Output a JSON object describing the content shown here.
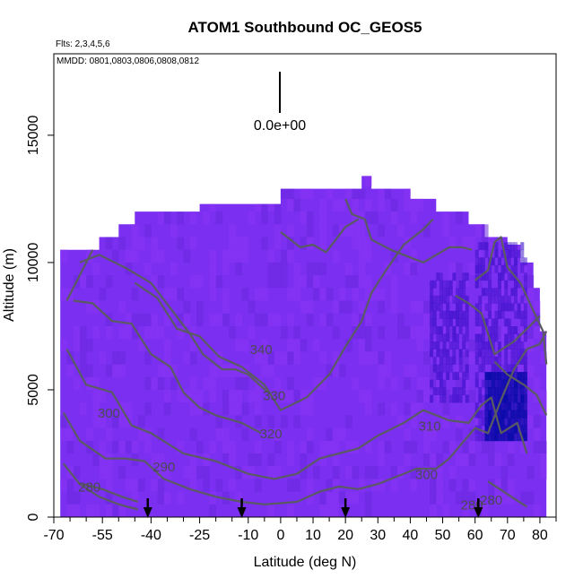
{
  "chart_data": {
    "type": "heatmap",
    "title": "ATOM1 Southbound OC_GEOS5",
    "subtitle": "Flts: 2,3,4,5,6",
    "note": "MMDD: 0801,0803,0806,0808,0812",
    "legend_value_label": "0.0e+00",
    "xlabel": "Latitude (deg N)",
    "ylabel": "Altitude (m)",
    "xlim": [
      -70,
      85
    ],
    "ylim": [
      0,
      18200
    ],
    "x_ticks": [
      -70,
      -55,
      -40,
      -25,
      -10,
      0,
      10,
      20,
      30,
      40,
      50,
      60,
      70,
      80
    ],
    "x_tick_labels": [
      "-70",
      "-55",
      "-40",
      "-25",
      "-10",
      "0",
      "10",
      "20",
      "30",
      "40",
      "50",
      "60",
      "70",
      "80"
    ],
    "y_ticks": [
      0,
      5000,
      10000,
      15000
    ],
    "y_tick_labels": [
      "0",
      "5000",
      "10000",
      "15000"
    ],
    "grid": false,
    "colors": {
      "field_base": "#7b2ff0",
      "field_light": "#8a35f5",
      "field_dark": "#6a28e0",
      "field_high": "#3b10c8",
      "field_max": "#0a0aa8",
      "contour": "#5a5a62",
      "contour_label": "#4a4a52",
      "axis": "#000000"
    },
    "field_envelope": [
      {
        "x": -68,
        "top": 10500
      },
      {
        "x": -62,
        "top": 10500
      },
      {
        "x": -56,
        "top": 11000
      },
      {
        "x": -50,
        "top": 11500
      },
      {
        "x": -45,
        "top": 12000
      },
      {
        "x": -35,
        "top": 12000
      },
      {
        "x": -25,
        "top": 12300
      },
      {
        "x": -12,
        "top": 12300
      },
      {
        "x": 0,
        "top": 12900
      },
      {
        "x": 20,
        "top": 12900
      },
      {
        "x": 25,
        "top": 13400
      },
      {
        "x": 28,
        "top": 12900
      },
      {
        "x": 40,
        "top": 12500
      },
      {
        "x": 48,
        "top": 12000
      },
      {
        "x": 58,
        "top": 11500
      },
      {
        "x": 63,
        "top": 11000
      },
      {
        "x": 70,
        "top": 10700
      },
      {
        "x": 74,
        "top": 10000
      },
      {
        "x": 78,
        "top": 9000
      },
      {
        "x": 80,
        "top": 7300
      },
      {
        "x": 82,
        "top": 6000
      }
    ],
    "high_regions": [
      {
        "x0": 46,
        "x1": 58,
        "y0": 4500,
        "y1": 9500,
        "level": "high"
      },
      {
        "x0": 60,
        "x1": 76,
        "y0": 3000,
        "y1": 10700,
        "level": "high"
      },
      {
        "x0": 63,
        "x1": 76,
        "y0": 3000,
        "y1": 5700,
        "level": "max"
      }
    ],
    "contours": [
      {
        "label": "340",
        "points": [
          [
            -45,
            9200
          ],
          [
            -38,
            8600
          ],
          [
            -32,
            7400
          ],
          [
            -25,
            7100
          ],
          [
            -19,
            6300
          ],
          [
            -12,
            5900
          ],
          [
            -5,
            5200
          ],
          [
            0,
            4200
          ],
          [
            8,
            4700
          ],
          [
            15,
            5600
          ],
          [
            20,
            6700
          ],
          [
            25,
            7700
          ],
          [
            28,
            8800
          ],
          [
            32,
            9600
          ],
          [
            38,
            10700
          ],
          [
            44,
            11300
          ],
          [
            47,
            11700
          ]
        ]
      },
      {
        "label": "330",
        "points": [
          [
            -62,
            10000
          ],
          [
            -56,
            10300
          ],
          [
            -48,
            9800
          ],
          [
            -40,
            9200
          ],
          [
            -34,
            8200
          ],
          [
            -28,
            7200
          ],
          [
            -24,
            6400
          ],
          [
            -18,
            5800
          ],
          [
            -14,
            5800
          ],
          [
            -10,
            5600
          ],
          [
            -4,
            4900
          ]
        ]
      },
      {
        "label": "320",
        "points": [
          [
            -64,
            8500
          ],
          [
            -58,
            8400
          ],
          [
            -52,
            7700
          ],
          [
            -46,
            7600
          ],
          [
            -40,
            6400
          ],
          [
            -34,
            5900
          ],
          [
            -30,
            4900
          ],
          [
            -25,
            4300
          ],
          [
            -20,
            4000
          ],
          [
            -12,
            3700
          ],
          [
            -6,
            3300
          ]
        ]
      },
      {
        "label": "310",
        "points": [
          [
            -66,
            6600
          ],
          [
            -60,
            5200
          ],
          [
            -52,
            4900
          ],
          [
            -46,
            3600
          ],
          [
            -40,
            3300
          ],
          [
            -30,
            2500
          ],
          [
            -20,
            2200
          ],
          [
            -10,
            1700
          ],
          [
            -2,
            1500
          ],
          [
            5,
            1700
          ],
          [
            12,
            2300
          ],
          [
            18,
            2500
          ],
          [
            24,
            2700
          ],
          [
            30,
            3200
          ],
          [
            38,
            3700
          ],
          [
            44,
            4200
          ],
          [
            52,
            3800
          ],
          [
            58,
            3700
          ],
          [
            62,
            4400
          ],
          [
            65,
            4700
          ],
          [
            68,
            3300
          ],
          [
            73,
            3700
          ],
          [
            76,
            2500
          ]
        ]
      },
      {
        "label": "300",
        "points": [
          [
            -67,
            4100
          ],
          [
            -62,
            3000
          ],
          [
            -54,
            2300
          ],
          [
            -48,
            2300
          ],
          [
            -42,
            2200
          ],
          [
            -36,
            1500
          ],
          [
            -28,
            1100
          ],
          [
            -20,
            800
          ],
          [
            -12,
            600
          ],
          [
            -5,
            500
          ],
          [
            5,
            600
          ],
          [
            12,
            1000
          ],
          [
            18,
            1200
          ],
          [
            24,
            1100
          ],
          [
            30,
            1300
          ],
          [
            36,
            1600
          ],
          [
            42,
            1900
          ],
          [
            48,
            1900
          ],
          [
            52,
            2300
          ],
          [
            56,
            2900
          ],
          [
            60,
            3500
          ],
          [
            64,
            3300
          ],
          [
            68,
            4600
          ],
          [
            72,
            5800
          ],
          [
            76,
            6600
          ],
          [
            80,
            6800
          ],
          [
            82,
            7300
          ]
        ]
      },
      {
        "label": "290",
        "points": [
          [
            -67,
            2100
          ],
          [
            -62,
            1300
          ],
          [
            -56,
            800
          ],
          [
            -50,
            500
          ],
          [
            -44,
            300
          ]
        ]
      },
      {
        "label": "280",
        "points": [
          [
            -61,
            1300
          ],
          [
            -55,
            1100
          ],
          [
            -49,
            800
          ],
          [
            -44,
            600
          ]
        ]
      },
      {
        "label": "",
        "points": [
          [
            -66,
            8500
          ],
          [
            -62,
            9500
          ],
          [
            -58,
            10500
          ]
        ]
      },
      {
        "label": "",
        "points": [
          [
            20,
            12500
          ],
          [
            22,
            11900
          ],
          [
            26,
            11700
          ],
          [
            28,
            10900
          ],
          [
            34,
            10500
          ],
          [
            40,
            10200
          ],
          [
            44,
            10000
          ],
          [
            48,
            10300
          ],
          [
            52,
            10600
          ],
          [
            56,
            10600
          ],
          [
            59,
            10500
          ]
        ]
      },
      {
        "label": "",
        "points": [
          [
            0,
            11200
          ],
          [
            6,
            10600
          ],
          [
            10,
            10700
          ],
          [
            14,
            10400
          ],
          [
            20,
            11400
          ],
          [
            24,
            11700
          ]
        ]
      },
      {
        "label": "",
        "points": [
          [
            60,
            9300
          ],
          [
            64,
            9700
          ],
          [
            66,
            10800
          ],
          [
            68,
            11000
          ],
          [
            70,
            9800
          ],
          [
            74,
            9200
          ],
          [
            78,
            8100
          ],
          [
            81,
            7300
          ],
          [
            82,
            6000
          ]
        ]
      },
      {
        "label": "",
        "points": [
          [
            54,
            8700
          ],
          [
            58,
            8400
          ],
          [
            62,
            8000
          ],
          [
            66,
            6400
          ],
          [
            72,
            6900
          ],
          [
            76,
            7400
          ],
          [
            80,
            7900
          ]
        ]
      },
      {
        "label": "",
        "points": [
          [
            66,
            6100
          ],
          [
            70,
            5600
          ],
          [
            75,
            5200
          ],
          [
            79,
            4800
          ],
          [
            82,
            4000
          ]
        ]
      },
      {
        "label": "",
        "points": [
          [
            64,
            1400
          ],
          [
            70,
            900
          ],
          [
            76,
            400
          ]
        ]
      }
    ],
    "contour_label_positions": [
      {
        "label": "340",
        "x": -6,
        "y": 6400
      },
      {
        "label": "330",
        "x": -2,
        "y": 4600
      },
      {
        "label": "320",
        "x": -3,
        "y": 3100
      },
      {
        "label": "310",
        "x": 46,
        "y": 3400
      },
      {
        "label": "300",
        "x": -53,
        "y": 3900
      },
      {
        "label": "300",
        "x": 45,
        "y": 1500
      },
      {
        "label": "290",
        "x": -36,
        "y": 1800
      },
      {
        "label": "280",
        "x": -59,
        "y": 1000
      },
      {
        "label": "280",
        "x": 65,
        "y": 500
      },
      {
        "label": "280",
        "x": 59,
        "y": 300
      }
    ],
    "flight_arrows_lat": [
      -41,
      -12,
      20,
      61
    ]
  }
}
